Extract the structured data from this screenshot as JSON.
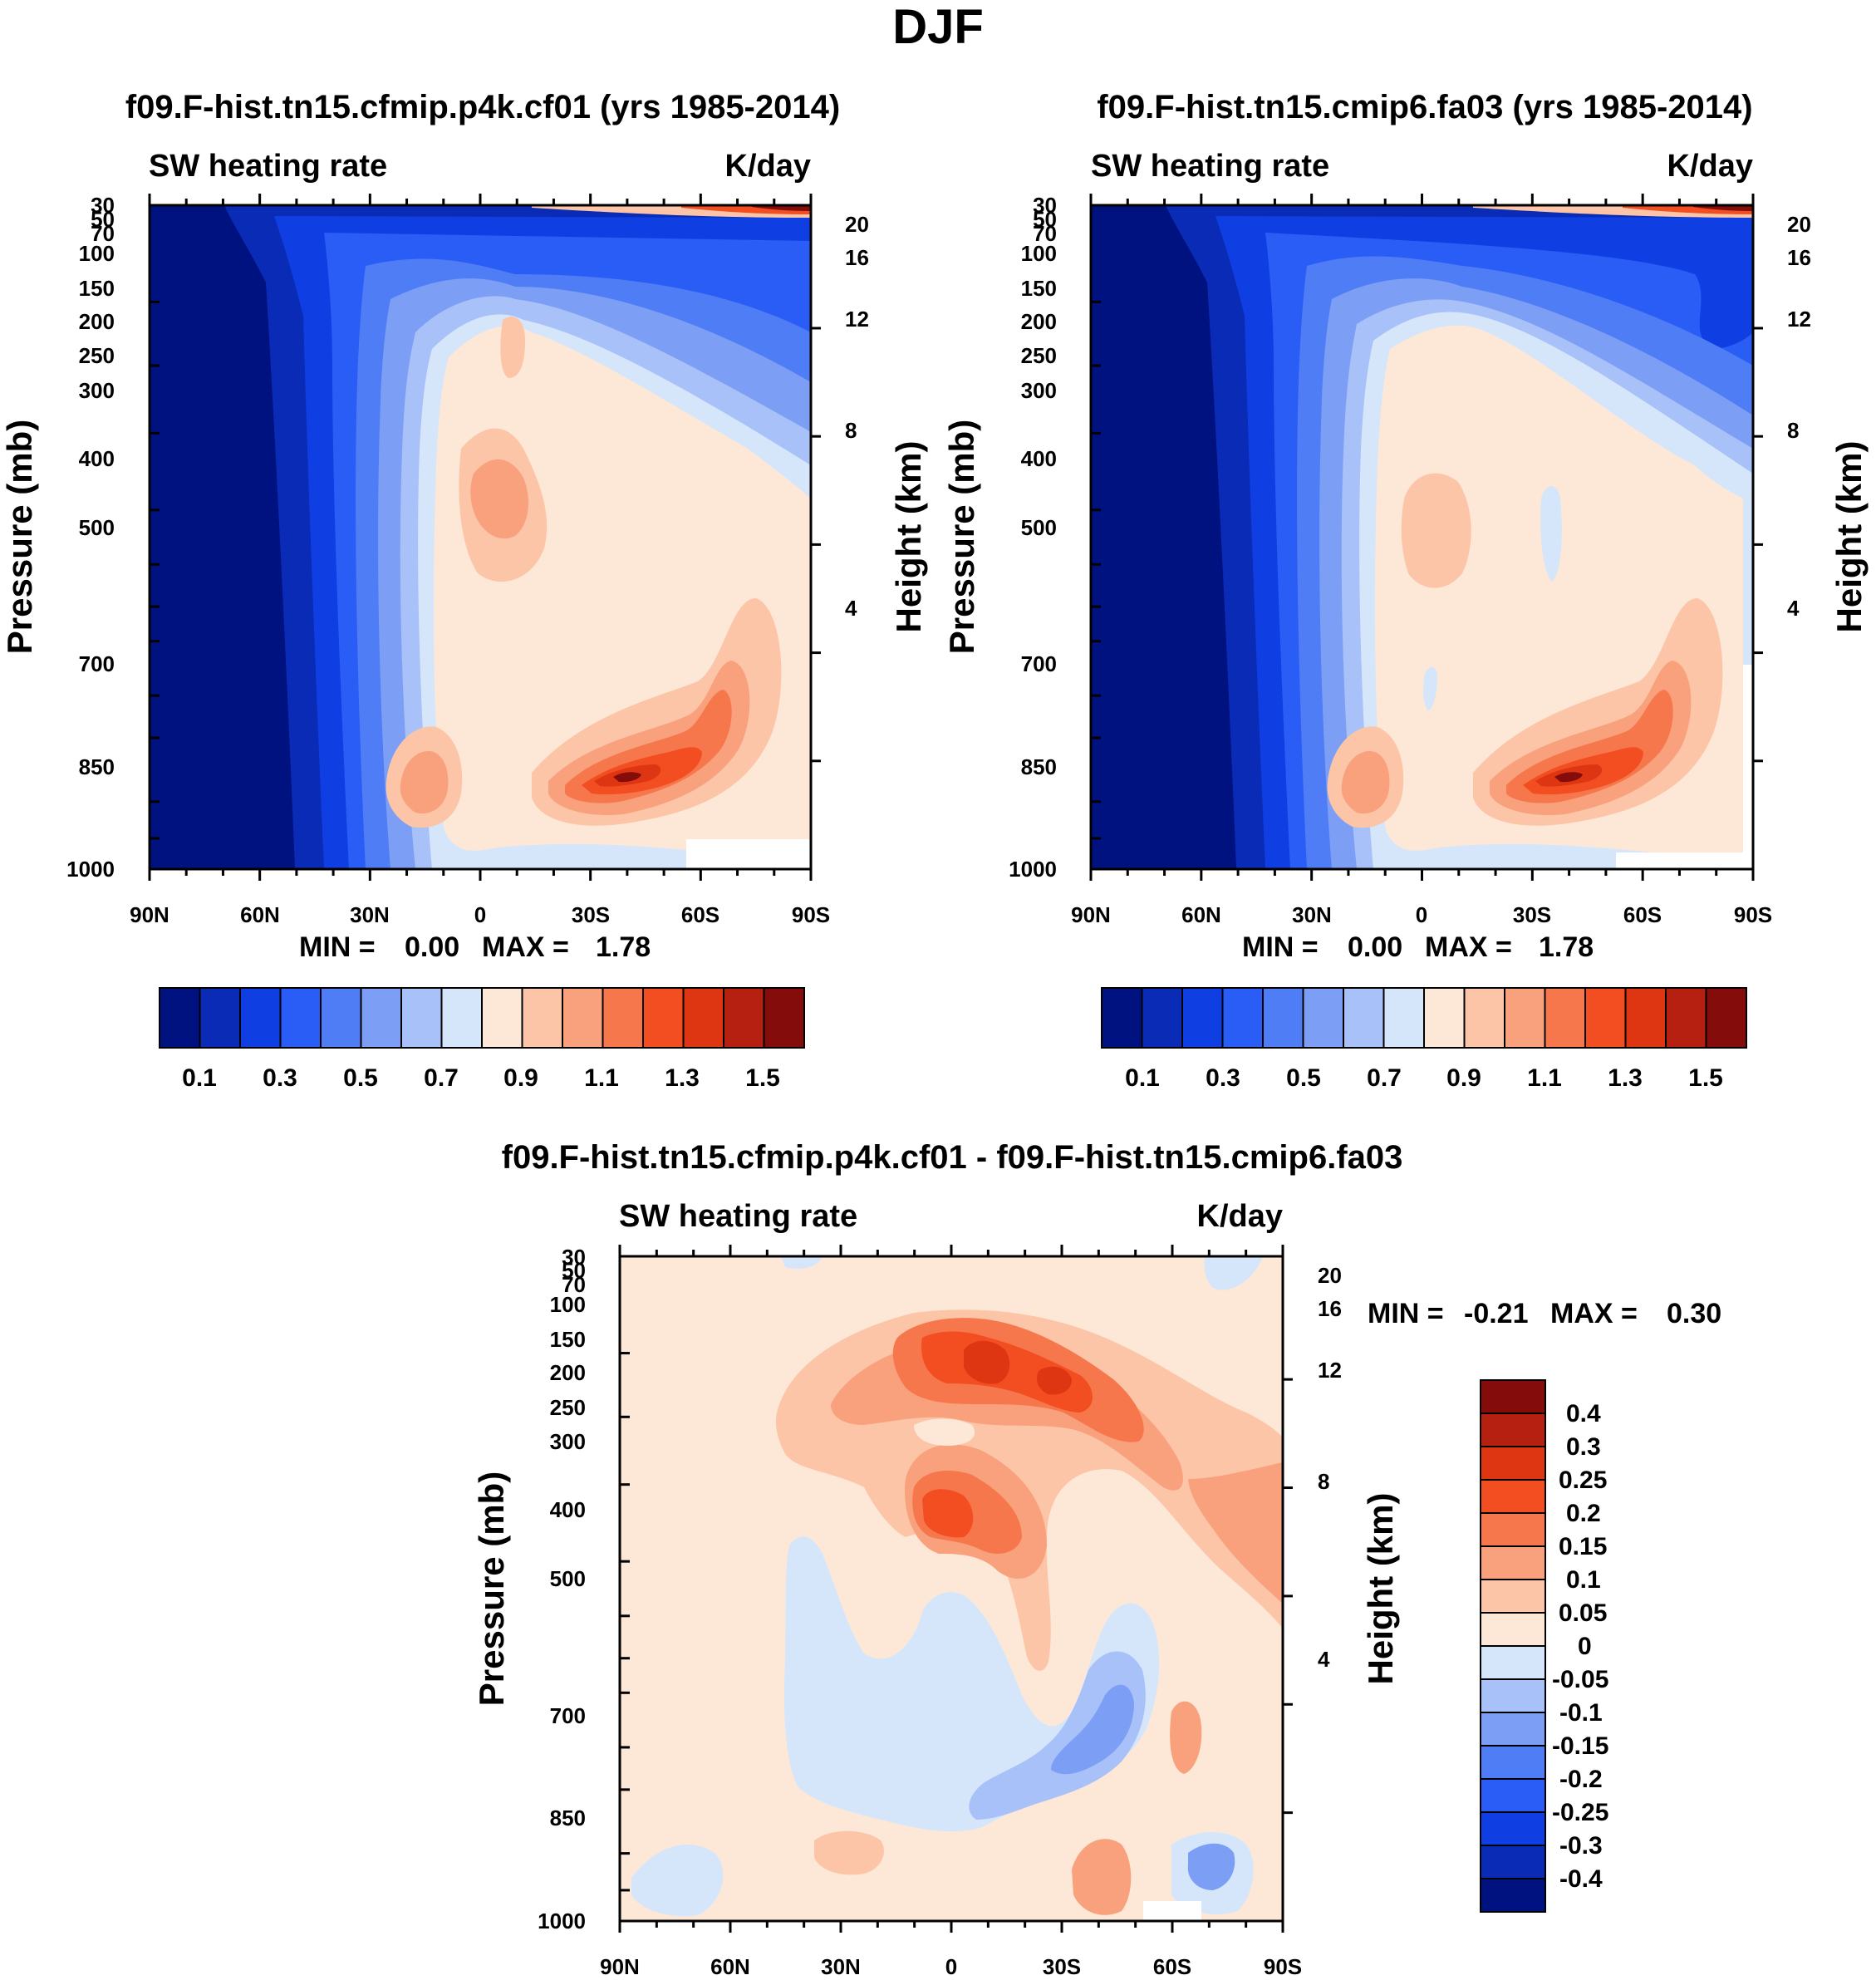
{
  "figure_title": "DJF",
  "chart_data": [
    {
      "type": "heatmap",
      "title": "f09.F-hist.tn15.cfmip.p4k.cf01 (yrs 1985-2014)",
      "left_label": "SW heating rate",
      "right_label": "K/day",
      "ylabel": "Pressure (mb)",
      "y2label": "Height (km)",
      "x_ticks": [
        "90N",
        "60N",
        "30N",
        "0",
        "30S",
        "60S",
        "90S"
      ],
      "y_ticks": [
        "30",
        "50",
        "70",
        "100",
        "150",
        "200",
        "250",
        "300",
        "400",
        "500",
        "700",
        "850",
        "1000"
      ],
      "y2_ticks": [
        "20",
        "16",
        "12",
        "8",
        "4"
      ],
      "stats": {
        "min_label": "MIN =",
        "min": "0.00",
        "max_label": "MAX =",
        "max": "1.78"
      },
      "colorbar_labels": [
        "0.1",
        "0.3",
        "0.5",
        "0.7",
        "0.9",
        "1.1",
        "1.3",
        "1.5"
      ],
      "levels": [
        0,
        0.1,
        0.2,
        0.3,
        0.4,
        0.5,
        0.6,
        0.7,
        0.8,
        0.9,
        1.0,
        1.1,
        1.2,
        1.3,
        1.4,
        1.5,
        1.6
      ],
      "colors": [
        "#00127f",
        "#0a2bb5",
        "#0f3fe3",
        "#2a5df5",
        "#4f7df5",
        "#7c9ff5",
        "#a8c1f8",
        "#d5e6fb",
        "#fde8d8",
        "#fcc5a8",
        "#f9a07c",
        "#f7774c",
        "#f24e22",
        "#de3512",
        "#b52010",
        "#840d0b"
      ]
    },
    {
      "type": "heatmap",
      "title": "f09.F-hist.tn15.cmip6.fa03 (yrs 1985-2014)",
      "left_label": "SW heating rate",
      "right_label": "K/day",
      "ylabel": "Pressure (mb)",
      "y2label": "Height (km)",
      "x_ticks": [
        "90N",
        "60N",
        "30N",
        "0",
        "30S",
        "60S",
        "90S"
      ],
      "y_ticks": [
        "30",
        "50",
        "70",
        "100",
        "150",
        "200",
        "250",
        "300",
        "400",
        "500",
        "700",
        "850",
        "1000"
      ],
      "y2_ticks": [
        "20",
        "16",
        "12",
        "8",
        "4"
      ],
      "stats": {
        "min_label": "MIN =",
        "min": "0.00",
        "max_label": "MAX =",
        "max": "1.78"
      },
      "colorbar_labels": [
        "0.1",
        "0.3",
        "0.5",
        "0.7",
        "0.9",
        "1.1",
        "1.3",
        "1.5"
      ],
      "levels": [
        0,
        0.1,
        0.2,
        0.3,
        0.4,
        0.5,
        0.6,
        0.7,
        0.8,
        0.9,
        1.0,
        1.1,
        1.2,
        1.3,
        1.4,
        1.5,
        1.6
      ],
      "colors": [
        "#00127f",
        "#0a2bb5",
        "#0f3fe3",
        "#2a5df5",
        "#4f7df5",
        "#7c9ff5",
        "#a8c1f8",
        "#d5e6fb",
        "#fde8d8",
        "#fcc5a8",
        "#f9a07c",
        "#f7774c",
        "#f24e22",
        "#de3512",
        "#b52010",
        "#840d0b"
      ]
    },
    {
      "type": "heatmap",
      "title": "f09.F-hist.tn15.cfmip.p4k.cf01 - f09.F-hist.tn15.cmip6.fa03",
      "left_label": "SW heating rate",
      "right_label": "K/day",
      "ylabel": "Pressure (mb)",
      "y2label": "Height (km)",
      "x_ticks": [
        "90N",
        "60N",
        "30N",
        "0",
        "30S",
        "60S",
        "90S"
      ],
      "y_ticks": [
        "30",
        "50",
        "70",
        "100",
        "150",
        "200",
        "250",
        "300",
        "400",
        "500",
        "700",
        "850",
        "1000"
      ],
      "y2_ticks": [
        "20",
        "16",
        "12",
        "8",
        "4"
      ],
      "stats": {
        "min_label": "MIN =",
        "min": "-0.21",
        "max_label": "MAX =",
        "max": "0.30"
      },
      "colorbar_labels": [
        "0.4",
        "0.3",
        "0.25",
        "0.2",
        "0.15",
        "0.1",
        "0.05",
        "0",
        "-0.05",
        "-0.1",
        "-0.15",
        "-0.2",
        "-0.25",
        "-0.3",
        "-0.4"
      ],
      "levels": [
        -0.4,
        -0.3,
        -0.25,
        -0.2,
        -0.15,
        -0.1,
        -0.05,
        0,
        0.05,
        0.1,
        0.15,
        0.2,
        0.25,
        0.3,
        0.4
      ],
      "colors": [
        "#00127f",
        "#0a2bb5",
        "#0f3fe3",
        "#2a5df5",
        "#4f7df5",
        "#7c9ff5",
        "#a8c1f8",
        "#d5e6fb",
        "#fde8d8",
        "#fcc5a8",
        "#f9a07c",
        "#f7774c",
        "#f24e22",
        "#de3512",
        "#b52010",
        "#840d0b"
      ]
    }
  ]
}
